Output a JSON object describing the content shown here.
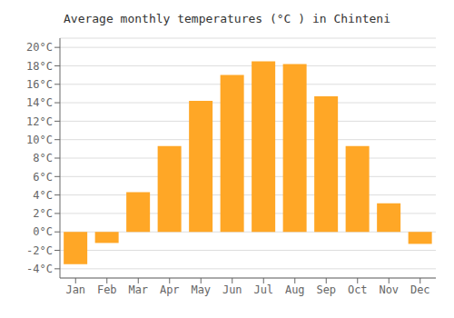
{
  "chart_data": {
    "type": "bar",
    "title": "Average monthly temperatures (°C ) in Chinteni",
    "categories": [
      "Jan",
      "Feb",
      "Mar",
      "Apr",
      "May",
      "Jun",
      "Jul",
      "Aug",
      "Sep",
      "Oct",
      "Nov",
      "Dec"
    ],
    "values": [
      -3.5,
      -1.2,
      4.3,
      9.3,
      14.2,
      17.0,
      18.5,
      18.2,
      14.7,
      9.3,
      3.1,
      -1.3
    ],
    "color": "#FFA726",
    "ylim": [
      -5,
      21
    ],
    "yticks": [
      {
        "value": -4,
        "label": "-4°C"
      },
      {
        "value": -2,
        "label": "-2°C"
      },
      {
        "value": 0,
        "label": "0°C"
      },
      {
        "value": 2,
        "label": "2°C"
      },
      {
        "value": 4,
        "label": "4°C"
      },
      {
        "value": 6,
        "label": "6°C"
      },
      {
        "value": 8,
        "label": "8°C"
      },
      {
        "value": 10,
        "label": "10°C"
      },
      {
        "value": 12,
        "label": "12°C"
      },
      {
        "value": 14,
        "label": "14°C"
      },
      {
        "value": 16,
        "label": "16°C"
      },
      {
        "value": 18,
        "label": "18°C"
      },
      {
        "value": 20,
        "label": "20°C"
      }
    ],
    "grid": true
  }
}
